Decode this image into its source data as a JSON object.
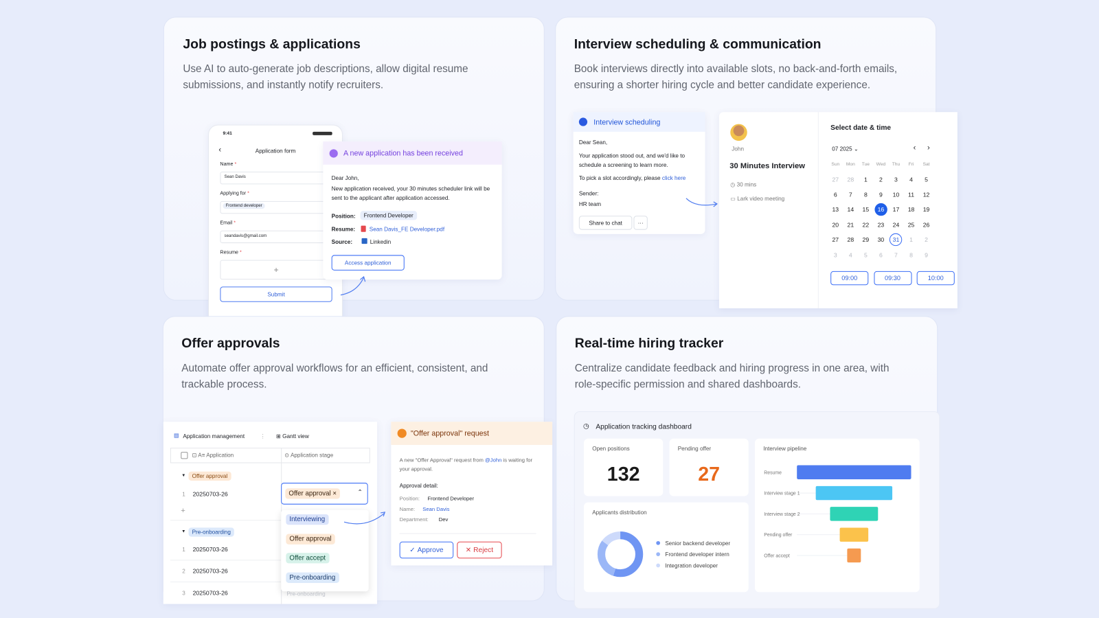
{
  "cards": [
    {
      "title": "Job postings & applications",
      "description": "Use AI to auto-generate job descriptions, allow digital resume submissions, and instantly notify recruiters."
    },
    {
      "title": "Interview scheduling & communication",
      "description": "Book interviews directly into available slots, no back-and-forth emails, ensuring a shorter hiring cycle and better candidate experience."
    },
    {
      "title": "Offer approvals",
      "description": "Automate offer approval workflows for an efficient, consistent, and trackable process."
    },
    {
      "title": "Real-time hiring tracker",
      "description": "Centralize candidate feedback and hiring progress in one area, with role-specific permission and shared dashboards."
    }
  ],
  "job_form": {
    "time": "9:41",
    "title": "Application form",
    "fields": [
      {
        "label": "Name",
        "value": "Sean Davis"
      },
      {
        "label": "Applying for",
        "value": "Frontend developer"
      },
      {
        "label": "Email",
        "value": "seandavis@gmail.com"
      },
      {
        "label": "Resume"
      }
    ],
    "submit": "Submit"
  },
  "notification": {
    "title": "A new application has been received",
    "greeting": "Dear John,",
    "body": "New application received, your 30 minutes scheduler link will be sent to the applicant after application accessed.",
    "details": [
      {
        "label": "Position:",
        "value": "Frontend Developer"
      },
      {
        "label": "Resume:",
        "value": "Sean Davis_FE Developer.pdf"
      },
      {
        "label": "Source:",
        "value": "Linkedin"
      }
    ],
    "button": "Access application"
  },
  "interview_message": {
    "header": "Interview scheduling",
    "greeting": "Dear Sean,",
    "body": "Your application stood out, and we'd like to schedule a screening to learn more.",
    "cta_text": "To pick a slot accordingly, please",
    "link": "click here",
    "sender_label": "Sender:",
    "sender": "HR team",
    "share": "Share to chat"
  },
  "booking": {
    "name": "John",
    "event": "30 Minutes Interview",
    "duration": "30 mins",
    "location": "Lark video meeting",
    "heading": "Select date & time",
    "month": "07 2025",
    "weekdays": [
      "Sun",
      "Mon",
      "Tue",
      "Wed",
      "Thu",
      "Fri",
      "Sat"
    ],
    "weeks": [
      [
        27,
        28,
        1,
        2,
        3,
        4,
        5
      ],
      [
        6,
        7,
        8,
        9,
        10,
        11,
        12
      ],
      [
        13,
        14,
        15,
        16,
        17,
        18,
        19
      ],
      [
        20,
        21,
        22,
        23,
        24,
        25,
        26
      ],
      [
        27,
        28,
        29,
        30,
        31,
        1,
        2
      ],
      [
        3,
        4,
        5,
        6,
        7,
        8,
        9
      ]
    ],
    "selected_day": 16,
    "outlined_day": 31,
    "slots": [
      "09:00",
      "09:30",
      "10:00"
    ]
  },
  "app_table": {
    "tabs": [
      "Application management",
      "Gantt view"
    ],
    "columns": [
      "Application",
      "Application stage"
    ],
    "groups": [
      {
        "name": "Offer approval",
        "rows": [
          {
            "index": 1,
            "id": "20250703-26"
          }
        ]
      },
      {
        "name": "Pre-onboarding",
        "rows": [
          {
            "index": 1,
            "id": "20250703-26"
          },
          {
            "index": 2,
            "id": "20250703-26"
          },
          {
            "index": 3,
            "id": "20250703-26",
            "stage": "Pre-onboarding"
          }
        ]
      }
    ],
    "selected_stage": "Offer approval",
    "options": [
      "Interviewing",
      "Offer approval",
      "Offer accept",
      "Pre-onboarding"
    ]
  },
  "approval_request": {
    "title": "\"Offer approval\" request",
    "message_start": "A new \"Offer Approval\" request from",
    "mention": "@John",
    "message_end": "is waiting for your approval.",
    "detail_heading": "Approval detail:",
    "details": [
      {
        "label": "Position:",
        "value": "Frontend Developer"
      },
      {
        "label": "Name:",
        "value": "Sean Davis"
      },
      {
        "label": "Department:",
        "value": "Dev"
      }
    ],
    "approve": "Approve",
    "reject": "Reject"
  },
  "dashboard": {
    "title": "Application tracking dashboard",
    "stats": [
      {
        "label": "Open positions",
        "value": 132,
        "color": "#1a1a1a"
      },
      {
        "label": "Pending offer",
        "value": 27,
        "color": "#e8691b"
      }
    ],
    "distribution": {
      "title": "Applicants distribution",
      "series": [
        {
          "name": "Senior backend developer",
          "color": "#6f95f3",
          "value": 55
        },
        {
          "name": "Frontend developer intern",
          "color": "#9bb7f7",
          "value": 30
        },
        {
          "name": "Integration developer",
          "color": "#cddafb",
          "value": 15
        }
      ]
    },
    "pipeline": {
      "title": "Interview pipeline",
      "stages": [
        {
          "name": "Resume",
          "color": "#4f7cf0",
          "value": 100
        },
        {
          "name": "Interview stage 1",
          "color": "#4cc6f4",
          "value": 67
        },
        {
          "name": "Interview stage 2",
          "color": "#2fd3b5",
          "value": 42
        },
        {
          "name": "Pending offer",
          "color": "#fbc24b",
          "value": 25
        },
        {
          "name": "Offer accept",
          "color": "#f59a50",
          "value": 12
        }
      ]
    }
  }
}
